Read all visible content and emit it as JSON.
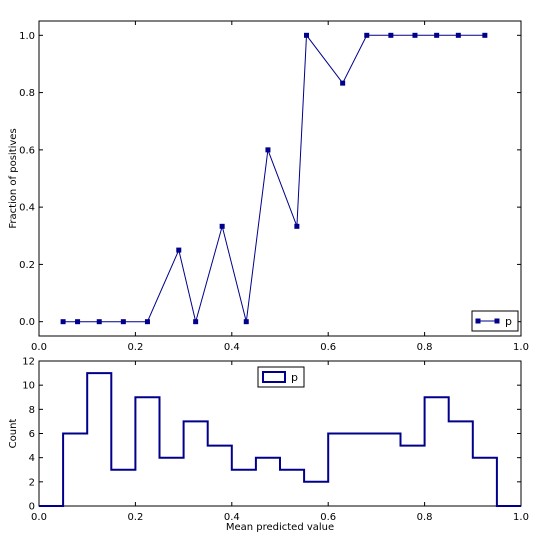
{
  "chart_data": [
    {
      "type": "line",
      "xlabel": "",
      "ylabel": "Fraction of positives",
      "xlim": [
        0.0,
        1.0
      ],
      "ylim": [
        -0.05,
        1.05
      ],
      "xticks": [
        "0.0",
        "0.2",
        "0.4",
        "0.6",
        "0.8",
        "1.0"
      ],
      "yticks": [
        "0.0",
        "0.2",
        "0.4",
        "0.6",
        "0.8",
        "1.0"
      ],
      "grid": false,
      "legend": "lower-right",
      "series": [
        {
          "name": "p",
          "color": "#00008b",
          "x": [
            0.05,
            0.08,
            0.125,
            0.175,
            0.225,
            0.29,
            0.325,
            0.38,
            0.43,
            0.475,
            0.535,
            0.555,
            0.63,
            0.68,
            0.73,
            0.78,
            0.825,
            0.87,
            0.925
          ],
          "y": [
            0.0,
            0.0,
            0.0,
            0.0,
            0.0,
            0.25,
            0.0,
            0.333,
            0.0,
            0.6,
            0.333,
            1.0,
            0.833,
            1.0,
            1.0,
            1.0,
            1.0,
            1.0,
            1.0
          ]
        }
      ]
    },
    {
      "type": "histogram",
      "xlabel": "Mean predicted value",
      "ylabel": "Count",
      "xlim": [
        0.0,
        1.0
      ],
      "ylim": [
        0,
        12
      ],
      "xticks": [
        "0.0",
        "0.2",
        "0.4",
        "0.6",
        "0.8",
        "1.0"
      ],
      "yticks": [
        "0",
        "2",
        "4",
        "6",
        "8",
        "10",
        "12"
      ],
      "grid": false,
      "legend": "upper-center",
      "series": [
        {
          "name": "p",
          "color": "#00008b",
          "bins": [
            0.0,
            0.05,
            0.1,
            0.15,
            0.2,
            0.25,
            0.3,
            0.35,
            0.4,
            0.45,
            0.5,
            0.55,
            0.6,
            0.65,
            0.7,
            0.75,
            0.8,
            0.85,
            0.9,
            0.95,
            1.0
          ],
          "counts": [
            0,
            6,
            11,
            3,
            9,
            4,
            7,
            5,
            3,
            4,
            3,
            2,
            6,
            6,
            6,
            5,
            9,
            7,
            4,
            0
          ]
        }
      ]
    }
  ]
}
